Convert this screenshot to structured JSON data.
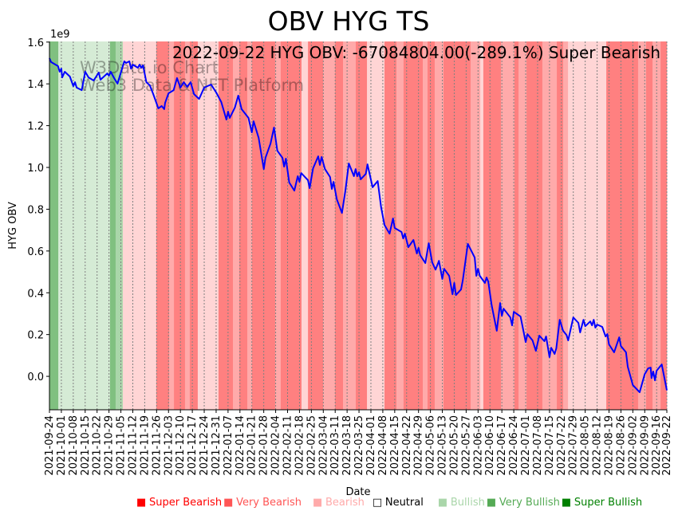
{
  "chart_data": {
    "type": "line",
    "title": "OBV HYG TS",
    "annotation": "2022-09-22 HYG OBV: -67084804.00(-289.1%) Super Bearish",
    "watermark": [
      "W3Data.io Chart",
      "Web3 Data & NFT Platform"
    ],
    "xlabel": "Date",
    "ylabel": "HYG OBV",
    "y_multiplier_label": "1e9",
    "start_date": "2021-09-24",
    "x_unit": "days since start_date",
    "xlim": [
      0,
      363
    ],
    "ylim": [
      -0.16,
      1.603
    ],
    "yticks": [
      0.0,
      0.2,
      0.4,
      0.6,
      0.8,
      1.0,
      1.2,
      1.4,
      1.6
    ],
    "ytick_labels": [
      "0.0",
      "0.2",
      "0.4",
      "0.6",
      "0.8",
      "1.0",
      "1.2",
      "1.4",
      "1.6"
    ],
    "xtick_days": [
      0,
      7,
      14,
      21,
      28,
      35,
      42,
      49,
      56,
      63,
      70,
      77,
      84,
      91,
      98,
      105,
      112,
      119,
      126,
      133,
      140,
      147,
      154,
      161,
      168,
      175,
      182,
      189,
      196,
      203,
      210,
      217,
      224,
      231,
      238,
      245,
      252,
      259,
      266,
      273,
      280,
      287,
      294,
      301,
      308,
      315,
      322,
      329,
      336,
      343,
      350,
      357,
      363
    ],
    "xtick_labels": [
      "2021-09-24",
      "2021-10-01",
      "2021-10-08",
      "2021-10-15",
      "2021-10-22",
      "2021-10-29",
      "2021-11-05",
      "2021-11-12",
      "2021-11-19",
      "2021-11-26",
      "2021-12-03",
      "2021-12-10",
      "2021-12-17",
      "2021-12-24",
      "2021-12-31",
      "2022-01-07",
      "2022-01-14",
      "2022-01-21",
      "2022-01-28",
      "2022-02-04",
      "2022-02-11",
      "2022-02-18",
      "2022-02-25",
      "2022-03-04",
      "2022-03-11",
      "2022-03-18",
      "2022-03-25",
      "2022-04-01",
      "2022-04-08",
      "2022-04-15",
      "2022-04-22",
      "2022-04-29",
      "2022-05-06",
      "2022-05-13",
      "2022-05-20",
      "2022-05-27",
      "2022-06-03",
      "2022-06-10",
      "2022-06-17",
      "2022-06-24",
      "2022-07-01",
      "2022-07-08",
      "2022-07-15",
      "2022-07-22",
      "2022-07-29",
      "2022-08-05",
      "2022-08-12",
      "2022-08-19",
      "2022-08-26",
      "2022-09-02",
      "2022-09-09",
      "2022-09-16",
      "2022-09-22"
    ],
    "grid": "x-dotted",
    "series": [
      {
        "name": "HYG OBV",
        "color": "#0000ff",
        "points": [
          [
            0,
            1.523
          ],
          [
            1,
            1.504
          ],
          [
            5,
            1.485
          ],
          [
            6,
            1.458
          ],
          [
            7,
            1.473
          ],
          [
            7.5,
            1.431
          ],
          [
            9,
            1.458
          ],
          [
            12,
            1.435
          ],
          [
            14,
            1.389
          ],
          [
            15,
            1.408
          ],
          [
            16,
            1.382
          ],
          [
            19,
            1.37
          ],
          [
            21,
            1.458
          ],
          [
            23,
            1.431
          ],
          [
            26,
            1.416
          ],
          [
            29,
            1.454
          ],
          [
            30,
            1.42
          ],
          [
            34,
            1.45
          ],
          [
            35,
            1.439
          ],
          [
            36,
            1.458
          ],
          [
            38,
            1.428
          ],
          [
            40,
            1.401
          ],
          [
            44,
            1.508
          ],
          [
            45,
            1.5
          ],
          [
            47,
            1.508
          ],
          [
            48,
            1.473
          ],
          [
            49,
            1.492
          ],
          [
            52,
            1.477
          ],
          [
            53,
            1.492
          ],
          [
            54,
            1.477
          ],
          [
            55,
            1.489
          ],
          [
            57,
            1.408
          ],
          [
            59,
            1.393
          ],
          [
            61,
            1.351
          ],
          [
            64,
            1.283
          ],
          [
            66,
            1.294
          ],
          [
            67.5,
            1.279
          ],
          [
            68,
            1.309
          ],
          [
            70,
            1.355
          ],
          [
            73,
            1.37
          ],
          [
            75,
            1.428
          ],
          [
            77,
            1.382
          ],
          [
            79,
            1.408
          ],
          [
            81,
            1.386
          ],
          [
            83,
            1.408
          ],
          [
            85,
            1.351
          ],
          [
            88,
            1.328
          ],
          [
            91,
            1.382
          ],
          [
            95,
            1.397
          ],
          [
            98,
            1.359
          ],
          [
            101,
            1.313
          ],
          [
            104,
            1.229
          ],
          [
            105,
            1.267
          ],
          [
            106,
            1.237
          ],
          [
            109,
            1.286
          ],
          [
            111,
            1.344
          ],
          [
            113,
            1.279
          ],
          [
            117,
            1.237
          ],
          [
            119,
            1.168
          ],
          [
            120,
            1.221
          ],
          [
            123,
            1.141
          ],
          [
            126,
            0.992
          ],
          [
            127,
            1.046
          ],
          [
            130,
            1.115
          ],
          [
            132,
            1.191
          ],
          [
            134,
            1.08
          ],
          [
            137,
            1.046
          ],
          [
            138,
            1.004
          ],
          [
            139,
            1.042
          ],
          [
            141,
            0.928
          ],
          [
            144,
            0.889
          ],
          [
            146,
            0.958
          ],
          [
            147,
            0.931
          ],
          [
            148,
            0.973
          ],
          [
            152,
            0.939
          ],
          [
            153,
            0.901
          ],
          [
            155,
            0.996
          ],
          [
            158,
            1.053
          ],
          [
            159,
            1.012
          ],
          [
            160,
            1.05
          ],
          [
            162,
            0.992
          ],
          [
            165,
            0.954
          ],
          [
            166,
            0.897
          ],
          [
            167,
            0.931
          ],
          [
            169,
            0.847
          ],
          [
            172,
            0.782
          ],
          [
            174,
            0.889
          ],
          [
            176,
            1.019
          ],
          [
            179,
            0.958
          ],
          [
            180,
            0.992
          ],
          [
            181,
            0.958
          ],
          [
            182,
            0.977
          ],
          [
            183,
            0.943
          ],
          [
            186,
            0.969
          ],
          [
            187,
            1.015
          ],
          [
            190,
            0.905
          ],
          [
            193,
            0.935
          ],
          [
            195,
            0.809
          ],
          [
            197,
            0.725
          ],
          [
            200,
            0.683
          ],
          [
            202,
            0.756
          ],
          [
            203,
            0.71
          ],
          [
            207,
            0.691
          ],
          [
            208,
            0.66
          ],
          [
            209,
            0.683
          ],
          [
            211,
            0.618
          ],
          [
            214,
            0.653
          ],
          [
            216,
            0.588
          ],
          [
            217,
            0.615
          ],
          [
            218,
            0.58
          ],
          [
            221,
            0.542
          ],
          [
            223,
            0.637
          ],
          [
            225,
            0.546
          ],
          [
            227,
            0.511
          ],
          [
            229,
            0.553
          ],
          [
            231,
            0.466
          ],
          [
            232,
            0.515
          ],
          [
            235,
            0.481
          ],
          [
            237,
            0.393
          ],
          [
            238,
            0.447
          ],
          [
            239,
            0.389
          ],
          [
            242,
            0.416
          ],
          [
            243,
            0.458
          ],
          [
            246,
            0.634
          ],
          [
            250,
            0.569
          ],
          [
            251,
            0.481
          ],
          [
            252,
            0.515
          ],
          [
            253,
            0.481
          ],
          [
            256,
            0.447
          ],
          [
            257,
            0.473
          ],
          [
            258,
            0.454
          ],
          [
            260,
            0.34
          ],
          [
            263,
            0.218
          ],
          [
            265,
            0.351
          ],
          [
            266,
            0.29
          ],
          [
            267,
            0.324
          ],
          [
            271,
            0.282
          ],
          [
            272,
            0.244
          ],
          [
            273,
            0.309
          ],
          [
            277,
            0.286
          ],
          [
            280,
            0.164
          ],
          [
            281,
            0.202
          ],
          [
            284,
            0.172
          ],
          [
            286,
            0.122
          ],
          [
            288,
            0.195
          ],
          [
            291,
            0.168
          ],
          [
            292,
            0.191
          ],
          [
            294,
            0.092
          ],
          [
            295,
            0.137
          ],
          [
            297,
            0.107
          ],
          [
            298,
            0.134
          ],
          [
            300,
            0.271
          ],
          [
            302,
            0.218
          ],
          [
            304,
            0.198
          ],
          [
            305,
            0.172
          ],
          [
            308,
            0.282
          ],
          [
            311,
            0.256
          ],
          [
            312,
            0.21
          ],
          [
            314,
            0.271
          ],
          [
            315,
            0.24
          ],
          [
            318,
            0.263
          ],
          [
            319,
            0.244
          ],
          [
            320,
            0.271
          ],
          [
            321,
            0.233
          ],
          [
            322,
            0.248
          ],
          [
            325,
            0.237
          ],
          [
            327,
            0.191
          ],
          [
            328,
            0.202
          ],
          [
            329,
            0.153
          ],
          [
            332,
            0.115
          ],
          [
            335,
            0.187
          ],
          [
            336,
            0.145
          ],
          [
            339,
            0.115
          ],
          [
            340,
            0.046
          ],
          [
            343,
            -0.042
          ],
          [
            347,
            -0.076
          ],
          [
            350,
            0.011
          ],
          [
            352,
            0.038
          ],
          [
            353.5,
            0.042
          ],
          [
            354,
            -0.008
          ],
          [
            355,
            0.023
          ],
          [
            356,
            -0.019
          ],
          [
            357,
            0.027
          ],
          [
            360,
            0.057
          ],
          [
            363,
            -0.067
          ]
        ]
      }
    ],
    "signal_bands": [
      [
        0,
        5.2,
        2
      ],
      [
        5.2,
        35.6,
        1
      ],
      [
        35.6,
        38.9,
        2
      ],
      [
        38.9,
        43.1,
        1.5
      ],
      [
        43.1,
        62.8,
        -1
      ],
      [
        62.8,
        70.4,
        -3
      ],
      [
        70.4,
        73.2,
        -2
      ],
      [
        73.2,
        79.7,
        -3
      ],
      [
        79.7,
        82.5,
        -2
      ],
      [
        82.5,
        87.2,
        -3
      ],
      [
        87.2,
        99.4,
        -1
      ],
      [
        99.4,
        107.9,
        -3
      ],
      [
        107.9,
        111.6,
        -2
      ],
      [
        111.6,
        116.3,
        -3
      ],
      [
        116.3,
        119.1,
        -2
      ],
      [
        119.1,
        132.7,
        -3
      ],
      [
        132.7,
        136,
        -2
      ],
      [
        136,
        148.2,
        -3
      ],
      [
        148.2,
        152,
        -1
      ],
      [
        152,
        160.9,
        -3
      ],
      [
        160.9,
        167.9,
        -2
      ],
      [
        167.9,
        172.6,
        -3
      ],
      [
        172.6,
        180.1,
        -2
      ],
      [
        180.1,
        186.7,
        -3
      ],
      [
        186.7,
        197,
        -1
      ],
      [
        197,
        204,
        -3
      ],
      [
        204,
        208.2,
        -2
      ],
      [
        208.2,
        219.5,
        -3
      ],
      [
        219.5,
        222.3,
        -2
      ],
      [
        222.3,
        226.5,
        -3
      ],
      [
        226.5,
        231.7,
        -2
      ],
      [
        231.7,
        247.6,
        -3
      ],
      [
        247.6,
        253.3,
        -2
      ],
      [
        253.3,
        255.1,
        -1
      ],
      [
        255.1,
        265.5,
        -3
      ],
      [
        265.5,
        273.4,
        -2
      ],
      [
        273.4,
        275.8,
        -3
      ],
      [
        275.8,
        280.5,
        -2
      ],
      [
        280.5,
        289.8,
        -3
      ],
      [
        289.8,
        298.3,
        -2
      ],
      [
        298.3,
        302,
        -3
      ],
      [
        302,
        304.9,
        -2
      ],
      [
        304.9,
        327.4,
        -1
      ],
      [
        327.4,
        346.1,
        -3
      ],
      [
        346.1,
        350.8,
        -2
      ],
      [
        350.8,
        354.6,
        -3
      ],
      [
        354.6,
        359.3,
        -2
      ],
      [
        359.3,
        363,
        -3
      ]
    ],
    "band_colors": {
      "-3": "#ff8080",
      "-2": "#ffaaaa",
      "-1": "#ffd5d5",
      "1": "#d5ebd5",
      "1.5": "#aad6aa",
      "2": "#80c080"
    },
    "legend": {
      "placement": "bottom-right",
      "entries": [
        {
          "label": "Super Bearish",
          "color": "#ff0000",
          "marker": "■"
        },
        {
          "label": "Very Bearish",
          "color": "#ff5555",
          "marker": "■"
        },
        {
          "label": "Bearish",
          "color": "#ffaaaa",
          "marker": "■"
        },
        {
          "label": "Neutral",
          "color": "#000000",
          "marker": "□"
        },
        {
          "label": "Bullish",
          "color": "#aad6aa",
          "marker": "■"
        },
        {
          "label": "Very Bullish",
          "color": "#55aa55",
          "marker": "■"
        },
        {
          "label": "Super Bullish",
          "color": "#008000",
          "marker": "■"
        }
      ]
    }
  }
}
